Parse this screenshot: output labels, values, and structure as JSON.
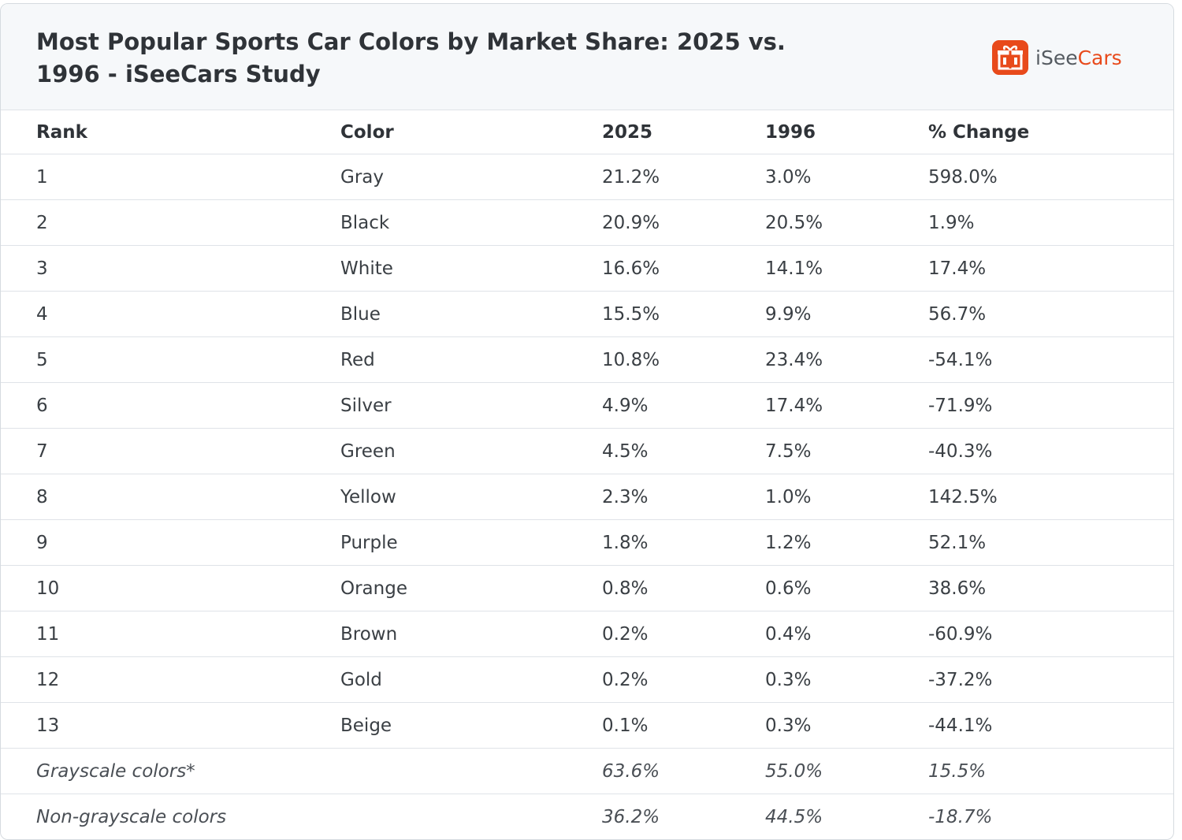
{
  "header": {
    "title": "Most Popular Sports Car Colors by Market Share: 2025 vs. 1996 - iSeeCars Study",
    "logo_prefix": "iSee",
    "logo_suffix": "Cars",
    "logo_icon": "car-gift-icon",
    "brand_color": "#e84a1b"
  },
  "table": {
    "columns": [
      "Rank",
      "Color",
      "2025",
      "1996",
      "% Change"
    ],
    "rows": [
      {
        "rank": "1",
        "color": "Gray",
        "y2025": "21.2%",
        "y1996": "3.0%",
        "change": "598.0%"
      },
      {
        "rank": "2",
        "color": "Black",
        "y2025": "20.9%",
        "y1996": "20.5%",
        "change": "1.9%"
      },
      {
        "rank": "3",
        "color": "White",
        "y2025": "16.6%",
        "y1996": "14.1%",
        "change": "17.4%"
      },
      {
        "rank": "4",
        "color": "Blue",
        "y2025": "15.5%",
        "y1996": "9.9%",
        "change": "56.7%"
      },
      {
        "rank": "5",
        "color": "Red",
        "y2025": "10.8%",
        "y1996": "23.4%",
        "change": "-54.1%"
      },
      {
        "rank": "6",
        "color": "Silver",
        "y2025": "4.9%",
        "y1996": "17.4%",
        "change": "-71.9%"
      },
      {
        "rank": "7",
        "color": "Green",
        "y2025": "4.5%",
        "y1996": "7.5%",
        "change": "-40.3%"
      },
      {
        "rank": "8",
        "color": "Yellow",
        "y2025": "2.3%",
        "y1996": "1.0%",
        "change": "142.5%"
      },
      {
        "rank": "9",
        "color": "Purple",
        "y2025": "1.8%",
        "y1996": "1.2%",
        "change": "52.1%"
      },
      {
        "rank": "10",
        "color": "Orange",
        "y2025": "0.8%",
        "y1996": "0.6%",
        "change": "38.6%"
      },
      {
        "rank": "11",
        "color": "Brown",
        "y2025": "0.2%",
        "y1996": "0.4%",
        "change": "-60.9%"
      },
      {
        "rank": "12",
        "color": "Gold",
        "y2025": "0.2%",
        "y1996": "0.3%",
        "change": "-37.2%"
      },
      {
        "rank": "13",
        "color": "Beige",
        "y2025": "0.1%",
        "y1996": "0.3%",
        "change": "-44.1%"
      }
    ],
    "summary": [
      {
        "label": "Grayscale colors*",
        "y2025": "63.6%",
        "y1996": "55.0%",
        "change": "15.5%"
      },
      {
        "label": "Non-grayscale colors",
        "y2025": "36.2%",
        "y1996": "44.5%",
        "change": "-18.7%"
      }
    ]
  }
}
